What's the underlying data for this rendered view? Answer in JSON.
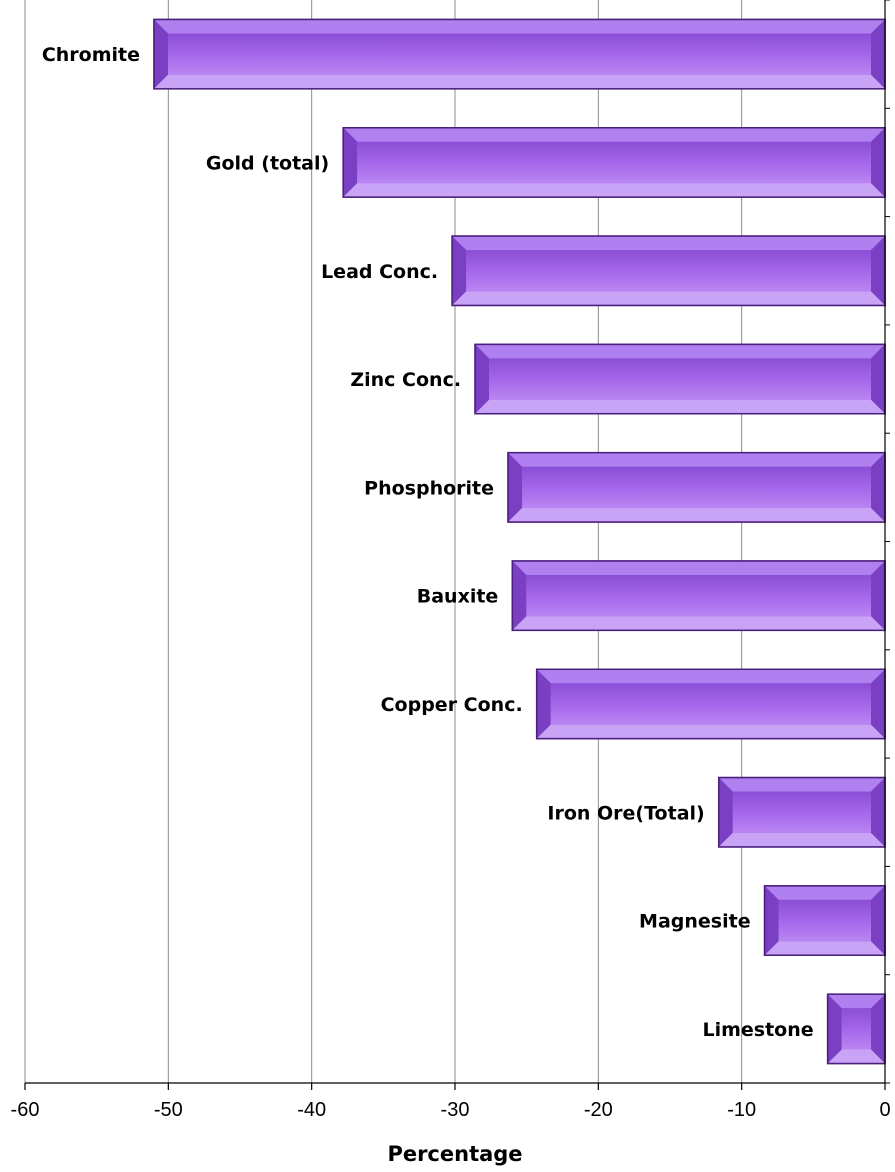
{
  "chart_data": {
    "type": "bar",
    "orientation": "horizontal",
    "categories": [
      "Chromite",
      "Gold (total)",
      "Lead Conc.",
      "Zinc Conc.",
      "Phosphorite",
      "Bauxite",
      "Copper Conc.",
      "Iron Ore(Total)",
      "Magnesite",
      "Limestone"
    ],
    "values": [
      -51,
      -37.8,
      -30.2,
      -28.6,
      -26.3,
      -26,
      -24.3,
      -11.6,
      -8.4,
      -4
    ],
    "xlabel": "Percentage",
    "ylabel": "",
    "xlim": [
      -60,
      0
    ],
    "x_ticks": [
      -60,
      -50,
      -40,
      -30,
      -20,
      -10,
      0
    ],
    "x_tick_labels": [
      "-60",
      "-50",
      "-40",
      "-30",
      "-20",
      "-10",
      "0"
    ],
    "grid": "vertical",
    "legend": "none",
    "colors": {
      "bar_face": "#9b5ce0",
      "bar_light": "#c9a3f5",
      "bar_dark": "#5e2d99",
      "bar_edge": "#4a1f7e",
      "grid": "#8c8c8c",
      "axis": "#000000"
    }
  }
}
